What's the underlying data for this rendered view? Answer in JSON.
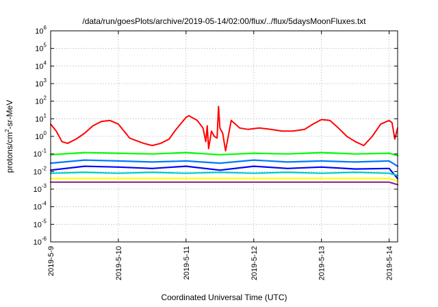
{
  "chart_data": {
    "type": "line",
    "title": "/data/run/goesPlots/archive/2019-05-14/02:00/flux/../flux/5daysMoonFluxes.txt",
    "xlabel": "Coordinated Universal Time (UTC)",
    "ylabel": "protons/cm2-sr-MeV",
    "ylabel_parts": {
      "pre": "protons/cm",
      "sup": "2",
      "post": "-sr-MeV"
    },
    "yscale": "log",
    "ylim": [
      1e-06,
      1000000.0
    ],
    "y_ticks": [
      {
        "base": "10",
        "exp": "-6"
      },
      {
        "base": "10",
        "exp": "-5"
      },
      {
        "base": "10",
        "exp": "-4"
      },
      {
        "base": "10",
        "exp": "-3"
      },
      {
        "base": "10",
        "exp": "-2"
      },
      {
        "base": "10",
        "exp": "-1"
      },
      {
        "base": "10",
        "exp": "0"
      },
      {
        "base": "10",
        "exp": "1"
      },
      {
        "base": "10",
        "exp": "2"
      },
      {
        "base": "10",
        "exp": "3"
      },
      {
        "base": "10",
        "exp": "4"
      },
      {
        "base": "10",
        "exp": "5"
      },
      {
        "base": "10",
        "exp": "6"
      }
    ],
    "x_ticks": [
      "2019-5-9",
      "2019-5-10",
      "2019-5-11",
      "2019-5-12",
      "2019-5-13",
      "2019-5-14"
    ],
    "xlim": [
      "2019-05-09T00:00",
      "2019-05-14T03:00"
    ],
    "grid": true,
    "series": [
      {
        "color": "#ff0000",
        "x": [
          "2019-05-09T00:00",
          "2019-05-09T02:00",
          "2019-05-09T04:00",
          "2019-05-09T06:00",
          "2019-05-09T09:00",
          "2019-05-09T12:00",
          "2019-05-09T15:00",
          "2019-05-09T18:00",
          "2019-05-09T21:00",
          "2019-05-10T00:00",
          "2019-05-10T02:00",
          "2019-05-10T04:00",
          "2019-05-10T06:00",
          "2019-05-10T09:00",
          "2019-05-10T12:00",
          "2019-05-10T15:00",
          "2019-05-10T18:00",
          "2019-05-10T20:00",
          "2019-05-10T22:00",
          "2019-05-11T00:00",
          "2019-05-11T01:00",
          "2019-05-11T02:00",
          "2019-05-11T04:00",
          "2019-05-11T06:00",
          "2019-05-11T07:00",
          "2019-05-11T07:30",
          "2019-05-11T08:00",
          "2019-05-11T09:00",
          "2019-05-11T10:00",
          "2019-05-11T11:00",
          "2019-05-11T11:30",
          "2019-05-11T12:00",
          "2019-05-11T13:00",
          "2019-05-11T14:00",
          "2019-05-11T16:00",
          "2019-05-11T19:00",
          "2019-05-11T22:00",
          "2019-05-12T02:00",
          "2019-05-12T06:00",
          "2019-05-12T10:00",
          "2019-05-12T14:00",
          "2019-05-12T18:00",
          "2019-05-12T21:00",
          "2019-05-13T00:00",
          "2019-05-13T03:00",
          "2019-05-13T06:00",
          "2019-05-13T09:00",
          "2019-05-13T12:00",
          "2019-05-13T15:00",
          "2019-05-13T18:00",
          "2019-05-13T21:00",
          "2019-05-14T00:00",
          "2019-05-14T01:00",
          "2019-05-14T02:00",
          "2019-05-14T03:00"
        ],
        "y": [
          5,
          2,
          0.5,
          0.4,
          0.7,
          1.5,
          4,
          7,
          8,
          5,
          2,
          0.8,
          0.6,
          0.4,
          0.3,
          0.4,
          0.7,
          2,
          5,
          12,
          15,
          12,
          8,
          3,
          0.5,
          4,
          0.2,
          2,
          1,
          0.8,
          50,
          3,
          1.5,
          0.15,
          8,
          3,
          2.5,
          3,
          2.5,
          2,
          2,
          2.5,
          5,
          9,
          8,
          3,
          1,
          0.5,
          0.3,
          1,
          5,
          8,
          6,
          0.7,
          3
        ]
      },
      {
        "color": "#00ff00",
        "x": [
          "2019-05-09T00:00",
          "2019-05-09T12:00",
          "2019-05-10T00:00",
          "2019-05-10T12:00",
          "2019-05-11T00:00",
          "2019-05-11T12:00",
          "2019-05-12T00:00",
          "2019-05-12T12:00",
          "2019-05-13T00:00",
          "2019-05-13T12:00",
          "2019-05-14T00:00",
          "2019-05-14T03:00"
        ],
        "y": [
          0.09,
          0.12,
          0.11,
          0.1,
          0.12,
          0.09,
          0.11,
          0.1,
          0.12,
          0.1,
          0.11,
          0.08
        ]
      },
      {
        "color": "#0077ff",
        "x": [
          "2019-05-09T00:00",
          "2019-05-09T12:00",
          "2019-05-10T00:00",
          "2019-05-10T12:00",
          "2019-05-11T00:00",
          "2019-05-11T12:00",
          "2019-05-12T00:00",
          "2019-05-12T12:00",
          "2019-05-13T00:00",
          "2019-05-13T12:00",
          "2019-05-14T00:00",
          "2019-05-14T03:00"
        ],
        "y": [
          0.03,
          0.045,
          0.04,
          0.035,
          0.04,
          0.03,
          0.045,
          0.035,
          0.04,
          0.035,
          0.04,
          0.02
        ]
      },
      {
        "color": "#0000ff",
        "x": [
          "2019-05-09T00:00",
          "2019-05-09T12:00",
          "2019-05-10T00:00",
          "2019-05-10T12:00",
          "2019-05-11T00:00",
          "2019-05-11T12:00",
          "2019-05-12T00:00",
          "2019-05-12T12:00",
          "2019-05-13T00:00",
          "2019-05-13T12:00",
          "2019-05-14T00:00",
          "2019-05-14T03:00"
        ],
        "y": [
          0.012,
          0.02,
          0.018,
          0.015,
          0.02,
          0.012,
          0.02,
          0.015,
          0.018,
          0.014,
          0.015,
          0.004
        ]
      },
      {
        "color": "#00cccc",
        "x": [
          "2019-05-09T00:00",
          "2019-05-09T12:00",
          "2019-05-10T00:00",
          "2019-05-10T12:00",
          "2019-05-11T00:00",
          "2019-05-11T12:00",
          "2019-05-12T00:00",
          "2019-05-12T12:00",
          "2019-05-13T00:00",
          "2019-05-13T12:00",
          "2019-05-14T00:00",
          "2019-05-14T03:00"
        ],
        "y": [
          0.008,
          0.009,
          0.008,
          0.009,
          0.008,
          0.009,
          0.008,
          0.009,
          0.008,
          0.009,
          0.008,
          0.006
        ]
      },
      {
        "color": "#ffff00",
        "x": [
          "2019-05-09T00:00",
          "2019-05-09T12:00",
          "2019-05-10T00:00",
          "2019-05-10T12:00",
          "2019-05-11T00:00",
          "2019-05-11T12:00",
          "2019-05-12T00:00",
          "2019-05-12T12:00",
          "2019-05-13T00:00",
          "2019-05-13T12:00",
          "2019-05-14T00:00",
          "2019-05-14T03:00"
        ],
        "y": [
          0.004,
          0.004,
          0.004,
          0.004,
          0.004,
          0.004,
          0.004,
          0.004,
          0.004,
          0.004,
          0.004,
          0.003
        ]
      },
      {
        "color": "#8b2a8b",
        "x": [
          "2019-05-09T00:00",
          "2019-05-09T12:00",
          "2019-05-10T00:00",
          "2019-05-10T12:00",
          "2019-05-11T00:00",
          "2019-05-11T12:00",
          "2019-05-12T00:00",
          "2019-05-12T12:00",
          "2019-05-13T00:00",
          "2019-05-13T12:00",
          "2019-05-14T00:00",
          "2019-05-14T03:00"
        ],
        "y": [
          0.0025,
          0.0025,
          0.0025,
          0.0025,
          0.0025,
          0.0025,
          0.0025,
          0.0025,
          0.0025,
          0.0025,
          0.0025,
          0.0018
        ]
      }
    ]
  }
}
